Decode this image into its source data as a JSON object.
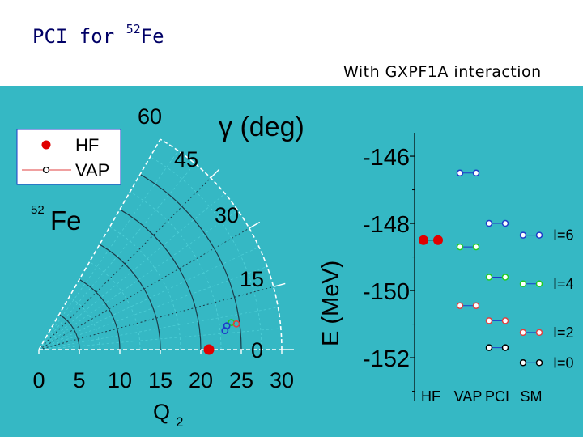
{
  "slide": {
    "title_main": "PCI for ",
    "title_super": "52",
    "title_element": "Fe",
    "subtitle": "With GXPF1A interaction"
  },
  "colors": {
    "panel_background": "#35b8c4",
    "hf": "#e00000",
    "vap_i6": "#1e3cc8",
    "vap_i4": "#22cc22",
    "vap_i2": "#e04040",
    "vap_i0": "#000000"
  },
  "chart_data": [
    {
      "type": "scatter",
      "title": "",
      "polar": true,
      "r_label": "Q",
      "r_label_sub": "2",
      "r_ticks": [
        "0",
        "5",
        "10",
        "15",
        "20",
        "25",
        "30"
      ],
      "theta_label": "γ (deg)",
      "theta_ticks": [
        "0",
        "15",
        "30",
        "45",
        "60"
      ],
      "r_range": [
        0,
        30
      ],
      "theta_range": [
        0,
        60
      ],
      "nucleus_mass": "52",
      "nucleus_symbol": "Fe",
      "legend": {
        "entries": [
          "HF",
          "VAP"
        ],
        "placement": "top-left"
      },
      "series": [
        {
          "name": "HF",
          "style": "filled",
          "color": "#e00000",
          "points": [
            {
              "q2": 21,
              "gamma": 0
            }
          ]
        },
        {
          "name": "VAP",
          "style": "open",
          "points": [
            {
              "q2": 24,
              "gamma": 8,
              "color": "#22cc22"
            },
            {
              "q2": 24.6,
              "gamma": 7.4,
              "color": "#e04040"
            },
            {
              "q2": 23.4,
              "gamma": 7.2,
              "color": "#1e3cc8"
            },
            {
              "q2": 23.1,
              "gamma": 5.8,
              "color": "#1e3cc8"
            }
          ]
        }
      ]
    },
    {
      "type": "scatter",
      "title": "",
      "ylabel": "E (MeV)",
      "ylim": [
        -153.3,
        -145.3
      ],
      "y_ticks": [
        -146,
        -148,
        -150,
        -152
      ],
      "categories": [
        "HF",
        "VAP",
        "PCI",
        "SM"
      ],
      "series": [
        {
          "name": "HF",
          "points": [
            {
              "category": "HF",
              "y": -148.5,
              "color": "#e00000"
            }
          ]
        },
        {
          "name": "I=6",
          "levels": [
            {
              "category": "VAP",
              "y": -146.5
            },
            {
              "category": "PCI",
              "y": -148.0
            },
            {
              "category": "SM",
              "y": -148.35
            }
          ],
          "color": "#1e3cc8"
        },
        {
          "name": "I=4",
          "levels": [
            {
              "category": "VAP",
              "y": -148.7
            },
            {
              "category": "PCI",
              "y": -149.6
            },
            {
              "category": "SM",
              "y": -149.8
            }
          ],
          "color": "#22cc22"
        },
        {
          "name": "I=2",
          "levels": [
            {
              "category": "VAP",
              "y": -150.45
            },
            {
              "category": "PCI",
              "y": -150.9
            },
            {
              "category": "SM",
              "y": -151.25
            }
          ],
          "color": "#e04040"
        },
        {
          "name": "I=0",
          "levels": [
            {
              "category": "PCI",
              "y": -151.7
            },
            {
              "category": "SM",
              "y": -152.15
            }
          ],
          "color": "#000000"
        }
      ],
      "level_labels": [
        "I=6",
        "I=4",
        "I=2",
        "I=0"
      ]
    }
  ]
}
